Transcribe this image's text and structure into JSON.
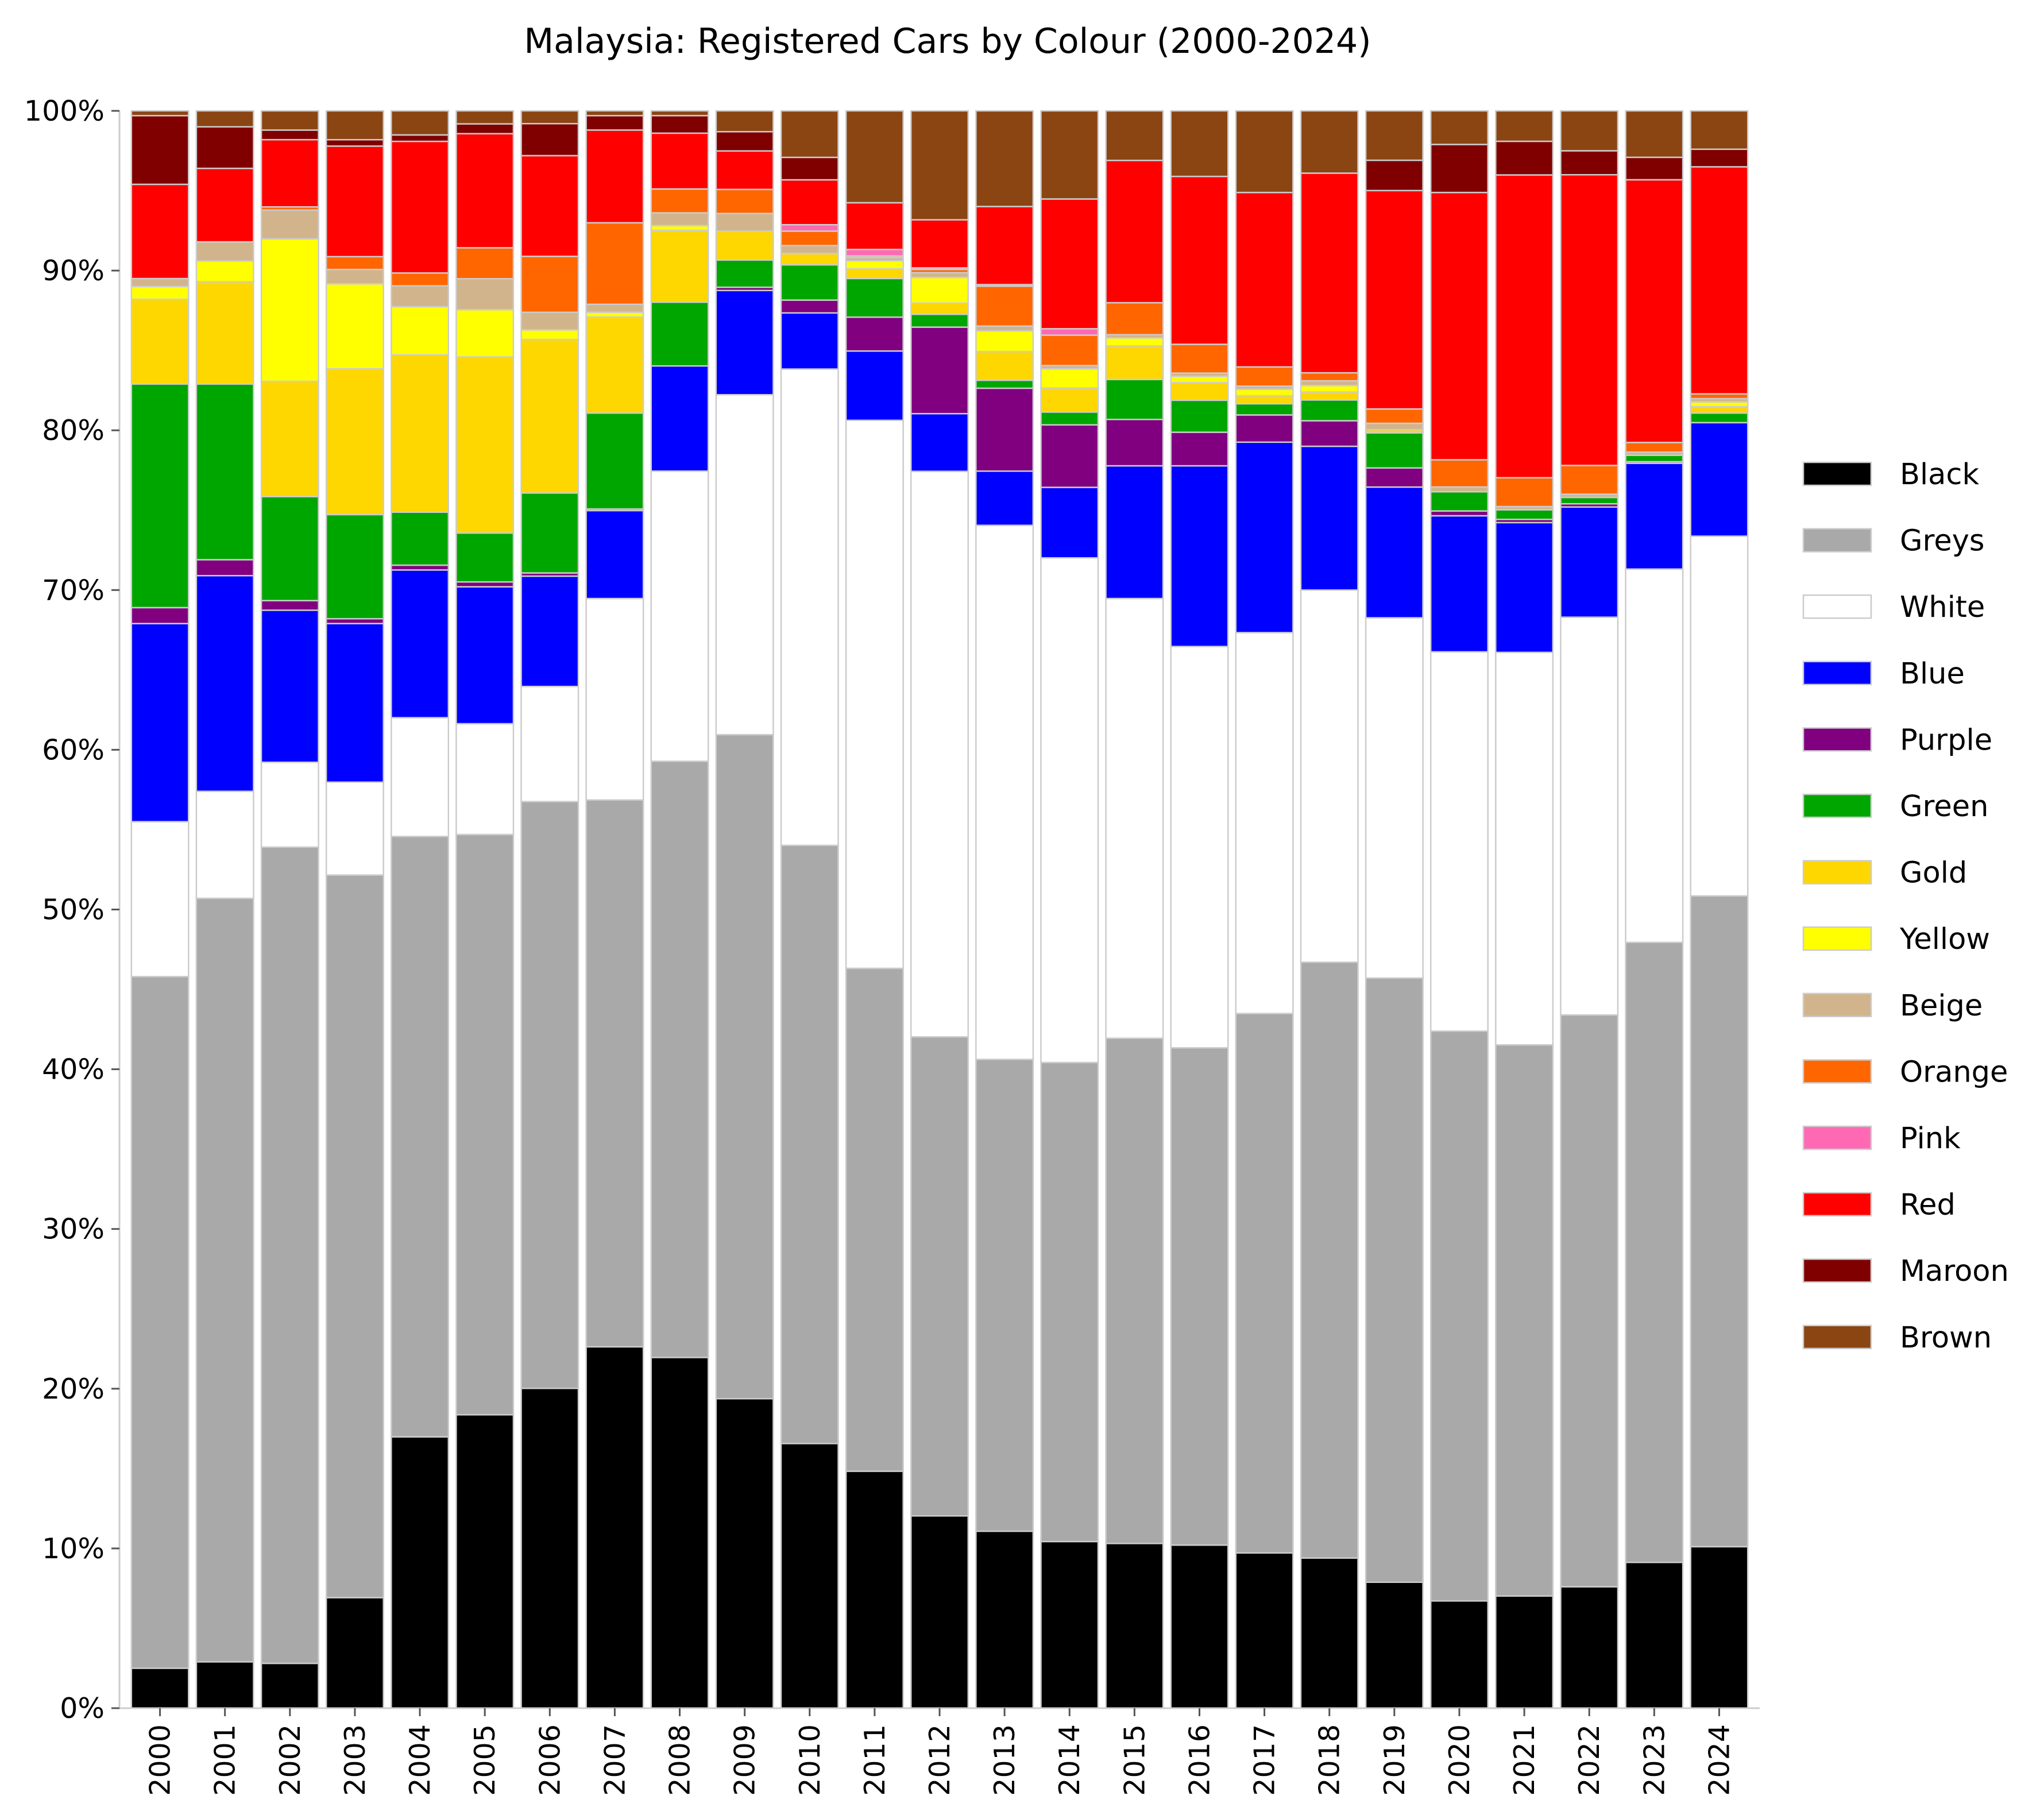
{
  "chart_data": {
    "type": "bar",
    "stacked": true,
    "title": "Malaysia: Registered Cars by Colour (2000-2024)",
    "xlabel": "",
    "ylabel": "",
    "ylim": [
      0,
      100
    ],
    "y_ticks": [
      "0%",
      "10%",
      "20%",
      "30%",
      "40%",
      "50%",
      "60%",
      "70%",
      "80%",
      "90%",
      "100%"
    ],
    "grid": false,
    "legend_position": "right",
    "categories": [
      "2000",
      "2001",
      "2002",
      "2003",
      "2004",
      "2005",
      "2006",
      "2007",
      "2008",
      "2009",
      "2010",
      "2011",
      "2012",
      "2013",
      "2014",
      "2015",
      "2016",
      "2017",
      "2018",
      "2019",
      "2020",
      "2021",
      "2022",
      "2023",
      "2024"
    ],
    "series": [
      {
        "name": "Black",
        "color": "#000000",
        "values": [
          2.5,
          2.9,
          2.8,
          6.9,
          16.9,
          18.0,
          20.0,
          22.6,
          22.0,
          19.3,
          16.5,
          14.7,
          12.0,
          11.1,
          10.4,
          10.3,
          10.2,
          9.7,
          9.4,
          7.9,
          6.7,
          7.0,
          7.6,
          9.1,
          10.1
        ]
      },
      {
        "name": "Greys",
        "color": "#a9a9a9",
        "values": [
          43.3,
          47.8,
          51.0,
          45.1,
          37.4,
          35.6,
          36.7,
          34.2,
          37.4,
          41.4,
          37.3,
          31.2,
          29.9,
          29.6,
          29.9,
          31.6,
          31.1,
          33.7,
          37.3,
          37.9,
          35.6,
          34.4,
          35.8,
          38.7,
          40.7
        ]
      },
      {
        "name": "White",
        "color": "#ffffff",
        "values": [
          9.7,
          6.7,
          5.3,
          5.8,
          7.4,
          6.8,
          7.2,
          12.6,
          18.2,
          21.2,
          29.7,
          34.0,
          35.3,
          33.5,
          31.5,
          27.5,
          25.1,
          23.8,
          23.3,
          22.6,
          23.7,
          24.5,
          24.9,
          23.3,
          22.5
        ]
      },
      {
        "name": "Blue",
        "color": "#0000ff",
        "values": [
          12.4,
          13.5,
          9.5,
          9.9,
          9.2,
          8.4,
          6.9,
          5.5,
          6.6,
          6.5,
          3.5,
          4.3,
          3.6,
          3.4,
          4.4,
          8.3,
          11.3,
          11.9,
          9.0,
          8.2,
          8.5,
          8.1,
          6.9,
          6.6,
          7.1
        ]
      },
      {
        "name": "Purple",
        "color": "#800080",
        "values": [
          1.0,
          1.0,
          0.6,
          0.3,
          0.3,
          0.3,
          0.2,
          0.1,
          0.0,
          0.2,
          0.8,
          2.1,
          5.4,
          5.2,
          3.9,
          2.9,
          2.1,
          1.7,
          1.6,
          1.2,
          0.3,
          0.2,
          0.2,
          0.1,
          0.0
        ]
      },
      {
        "name": "Green",
        "color": "#00a600",
        "values": [
          14.0,
          11.0,
          6.5,
          6.5,
          3.3,
          3.0,
          5.0,
          6.0,
          4.0,
          1.7,
          2.2,
          2.4,
          0.8,
          0.5,
          0.8,
          2.5,
          2.0,
          0.7,
          1.3,
          2.2,
          1.2,
          0.6,
          0.4,
          0.4,
          0.6
        ]
      },
      {
        "name": "Gold",
        "color": "#ffd700",
        "values": [
          5.3,
          6.4,
          7.2,
          9.1,
          9.8,
          10.8,
          9.6,
          6.0,
          4.5,
          1.8,
          0.7,
          0.6,
          0.7,
          1.8,
          1.5,
          2.1,
          1.1,
          0.5,
          0.5,
          0.2,
          0.0,
          0.0,
          0.0,
          0.0,
          0.4
        ]
      },
      {
        "name": "Yellow",
        "color": "#ffff00",
        "values": [
          0.8,
          1.3,
          8.9,
          5.3,
          3.0,
          2.9,
          0.6,
          0.3,
          0.3,
          0.0,
          0.0,
          0.5,
          1.6,
          1.3,
          1.2,
          0.5,
          0.4,
          0.4,
          0.4,
          0.0,
          0.0,
          0.0,
          0.0,
          0.0,
          0.3
        ]
      },
      {
        "name": "Beige",
        "color": "#d2b48c",
        "values": [
          0.5,
          1.2,
          1.8,
          0.9,
          1.3,
          1.9,
          1.1,
          0.5,
          0.8,
          1.1,
          0.5,
          0.2,
          0.3,
          0.3,
          0.2,
          0.2,
          0.2,
          0.2,
          0.3,
          0.4,
          0.3,
          0.2,
          0.2,
          0.2,
          0.2
        ]
      },
      {
        "name": "Orange",
        "color": "#ff6600",
        "values": [
          0.0,
          0.0,
          0.2,
          0.8,
          0.8,
          1.9,
          3.5,
          5.1,
          1.5,
          1.5,
          0.9,
          0.1,
          0.2,
          2.5,
          1.9,
          2.0,
          1.8,
          1.2,
          0.5,
          0.9,
          1.7,
          1.8,
          1.8,
          0.6,
          0.3
        ]
      },
      {
        "name": "Pink",
        "color": "#ff69b4",
        "values": [
          0.0,
          0.0,
          0.0,
          0.0,
          0.0,
          0.0,
          0.0,
          0.0,
          0.0,
          0.0,
          0.4,
          0.4,
          0.1,
          0.1,
          0.4,
          0.0,
          0.0,
          0.0,
          0.0,
          0.0,
          0.0,
          0.0,
          0.0,
          0.0,
          0.0
        ]
      },
      {
        "name": "Red",
        "color": "#ff0000",
        "values": [
          5.9,
          4.6,
          4.2,
          6.9,
          8.2,
          7.0,
          6.3,
          5.8,
          3.5,
          2.4,
          2.8,
          2.9,
          3.0,
          4.9,
          8.1,
          8.9,
          10.5,
          10.9,
          12.5,
          13.7,
          16.7,
          18.9,
          18.2,
          16.4,
          14.2
        ]
      },
      {
        "name": "Maroon",
        "color": "#800000",
        "values": [
          4.3,
          2.6,
          0.6,
          0.4,
          0.4,
          0.6,
          2.0,
          0.9,
          1.1,
          1.2,
          1.4,
          0.0,
          0.0,
          0.0,
          0.0,
          0.0,
          0.0,
          0.0,
          0.0,
          1.9,
          3.0,
          2.1,
          1.5,
          1.4,
          1.1
        ]
      },
      {
        "name": "Brown",
        "color": "#8b4513",
        "values": [
          0.3,
          1.0,
          1.2,
          1.8,
          1.5,
          0.8,
          0.8,
          0.3,
          0.3,
          1.3,
          2.9,
          5.7,
          6.8,
          6.0,
          5.5,
          3.1,
          4.1,
          5.1,
          3.9,
          3.1,
          2.1,
          1.9,
          2.5,
          2.9,
          2.4
        ]
      }
    ]
  }
}
